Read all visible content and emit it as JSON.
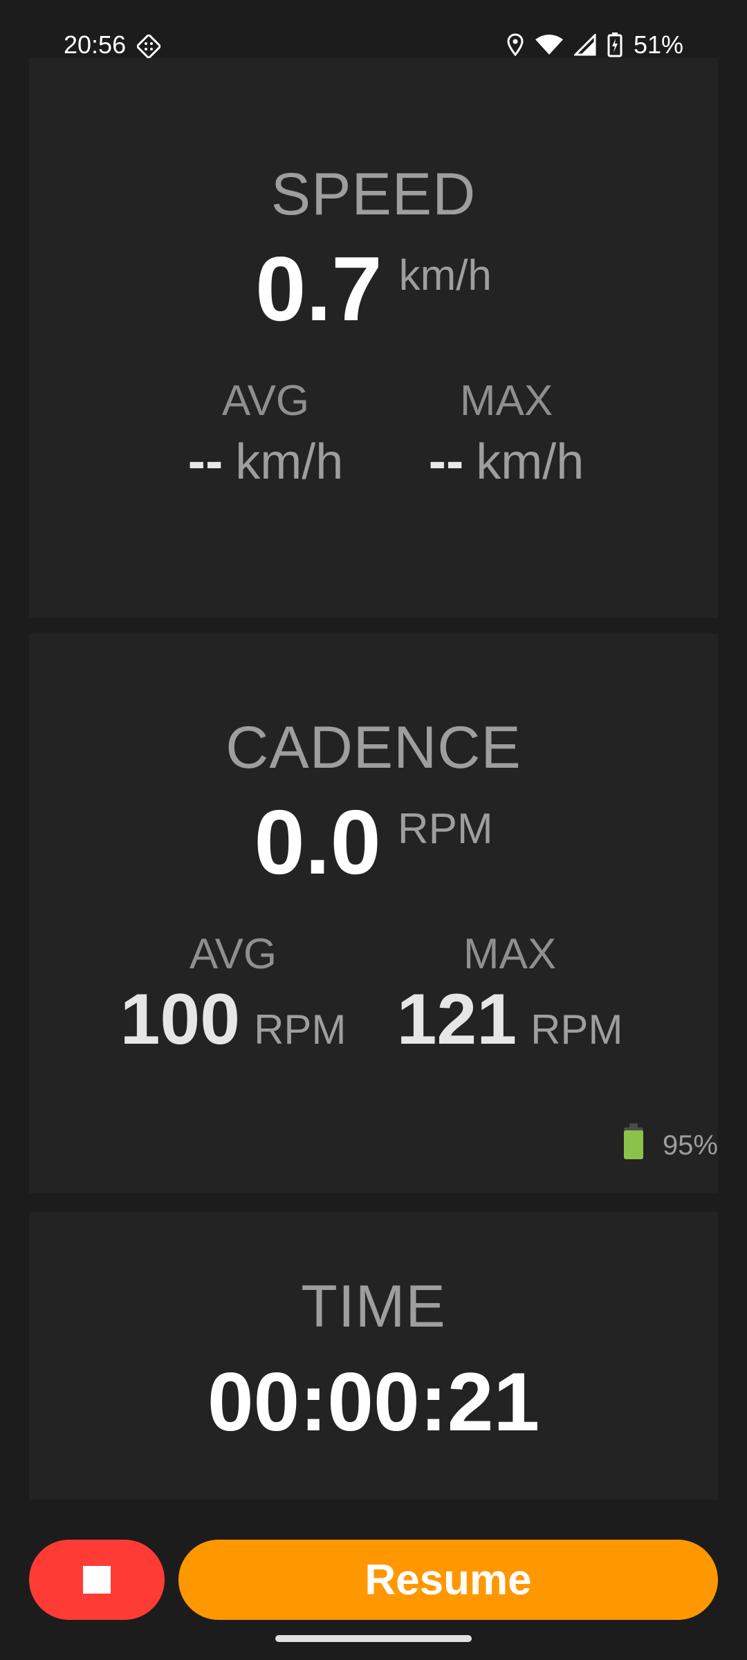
{
  "status_bar": {
    "time": "20:56",
    "battery_percent": "51%",
    "icons": [
      "app-notification-icon",
      "location-icon",
      "wifi-icon",
      "cell-signal-icon",
      "battery-charging-icon"
    ]
  },
  "speed": {
    "title": "SPEED",
    "value": "0.7",
    "unit": "km/h",
    "avg_label": "AVG",
    "avg_value": "--",
    "avg_unit": "km/h",
    "max_label": "MAX",
    "max_value": "--",
    "max_unit": "km/h"
  },
  "cadence": {
    "title": "CADENCE",
    "value": "0.0",
    "unit": "RPM",
    "avg_label": "AVG",
    "avg_value": "100",
    "avg_unit": "RPM",
    "max_label": "MAX",
    "max_value": "121",
    "max_unit": "RPM",
    "sensor_battery": "95%",
    "sensor_battery_level": 0.95
  },
  "time": {
    "title": "TIME",
    "value": "00:00:21"
  },
  "actions": {
    "resume_label": "Resume",
    "stop_icon": "stop-icon"
  },
  "colors": {
    "stop": "#ff3b35",
    "resume": "#ff9800",
    "battery_green": "#8bc34a"
  }
}
